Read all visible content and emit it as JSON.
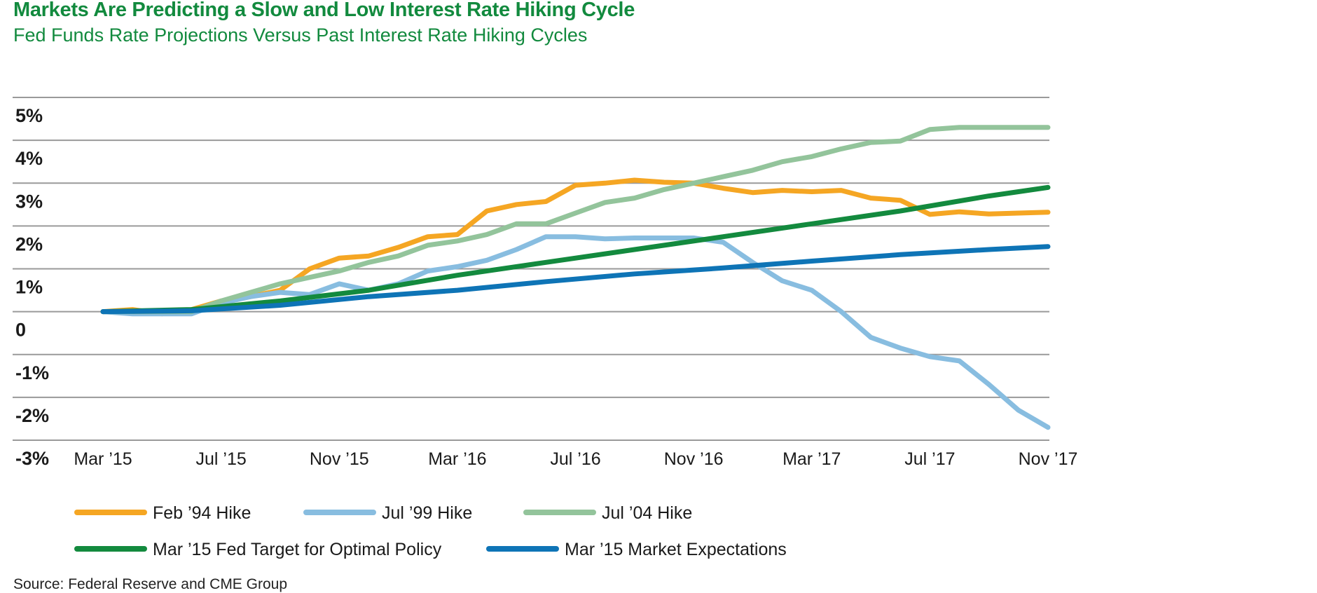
{
  "header": {
    "title": "Markets Are Predicting a Slow and Low Interest Rate Hiking Cycle",
    "subtitle": "Fed Funds Rate Projections Versus Past Interest Rate Hiking Cycles"
  },
  "footer": {
    "source": "Source: Federal Reserve and CME Group"
  },
  "chart_data": {
    "type": "line",
    "title": "Markets Are Predicting a Slow and Low Interest Rate Hiking Cycle",
    "subtitle": "Fed Funds Rate Projections Versus Past Interest Rate Hiking Cycles",
    "xlabel": "",
    "ylabel": "",
    "x_tick_labels": [
      "Mar ’15",
      "Jul ’15",
      "Nov ’15",
      "Mar ’16",
      "Jul ’16",
      "Nov ’16",
      "Mar ’17",
      "Jul ’17",
      "Nov ’17"
    ],
    "y_tick_labels": [
      "5%",
      "4%",
      "3%",
      "2%",
      "1%",
      "0",
      "-1%",
      "-2%",
      "-3%"
    ],
    "y_tick_values": [
      5,
      4,
      3,
      2,
      1,
      0,
      -1,
      -2,
      -3
    ],
    "ylim": [
      -3,
      5
    ],
    "x_unit": "months since Mar ’15",
    "xlim": [
      0,
      32
    ],
    "grid": true,
    "legend_position": "bottom",
    "series": [
      {
        "name": "Feb ’94 Hike",
        "color": "#f5a623",
        "x": [
          0,
          1,
          2,
          3,
          4,
          5,
          6,
          7,
          8,
          9,
          10,
          11,
          12,
          13,
          14,
          15,
          16,
          17,
          18,
          19,
          20,
          21,
          22,
          23,
          24,
          25,
          26,
          27,
          28,
          29,
          30,
          31,
          32
        ],
        "y": [
          0,
          0.05,
          -0.05,
          0.05,
          0.25,
          0.35,
          0.5,
          1.0,
          1.25,
          1.3,
          1.5,
          1.75,
          1.8,
          2.35,
          2.5,
          2.57,
          2.95,
          3.0,
          3.07,
          3.02,
          3.0,
          2.88,
          2.78,
          2.83,
          2.8,
          2.83,
          2.65,
          2.6,
          2.27,
          2.33,
          2.28,
          2.3,
          2.32
        ]
      },
      {
        "name": "Jul ’99 Hike",
        "color": "#88bde0",
        "x": [
          0,
          1,
          2,
          3,
          4,
          5,
          6,
          7,
          8,
          9,
          10,
          11,
          12,
          13,
          14,
          15,
          16,
          17,
          18,
          19,
          20,
          21,
          22,
          23,
          24,
          25,
          26,
          27,
          28,
          29,
          30,
          31,
          32
        ],
        "y": [
          0,
          -0.05,
          -0.05,
          -0.05,
          0.2,
          0.35,
          0.45,
          0.4,
          0.65,
          0.5,
          0.65,
          0.95,
          1.05,
          1.2,
          1.45,
          1.75,
          1.75,
          1.7,
          1.72,
          1.72,
          1.72,
          1.62,
          1.15,
          0.72,
          0.5,
          0.0,
          -0.6,
          -0.85,
          -1.05,
          -1.15,
          -1.7,
          -2.3,
          -2.7
        ]
      },
      {
        "name": "Jul ’04 Hike",
        "color": "#93c49b",
        "x": [
          0,
          1,
          2,
          3,
          4,
          5,
          6,
          7,
          8,
          9,
          10,
          11,
          12,
          13,
          14,
          15,
          16,
          17,
          18,
          19,
          20,
          21,
          22,
          23,
          24,
          25,
          26,
          27,
          28,
          29,
          30,
          31,
          32
        ],
        "y": [
          0,
          0,
          0,
          0,
          0.25,
          0.45,
          0.65,
          0.8,
          0.95,
          1.15,
          1.3,
          1.55,
          1.65,
          1.8,
          2.05,
          2.05,
          2.3,
          2.55,
          2.65,
          2.85,
          3.0,
          3.15,
          3.3,
          3.5,
          3.62,
          3.8,
          3.95,
          3.98,
          4.25,
          4.3,
          4.3,
          4.3,
          4.3
        ]
      },
      {
        "name": "Mar ’15 Fed Target for Optimal Policy",
        "color": "#138a3e",
        "x": [
          0,
          3,
          6,
          9,
          12,
          15,
          18,
          21,
          24,
          27,
          30,
          32
        ],
        "y": [
          0,
          0.05,
          0.25,
          0.5,
          0.85,
          1.15,
          1.45,
          1.75,
          2.05,
          2.35,
          2.7,
          2.9
        ]
      },
      {
        "name": "Mar ’15 Market Expectations",
        "color": "#0e74b6",
        "x": [
          0,
          3,
          6,
          9,
          12,
          15,
          18,
          21,
          24,
          27,
          30,
          32
        ],
        "y": [
          0,
          0.02,
          0.15,
          0.35,
          0.5,
          0.7,
          0.88,
          1.02,
          1.18,
          1.33,
          1.45,
          1.52
        ]
      }
    ]
  }
}
